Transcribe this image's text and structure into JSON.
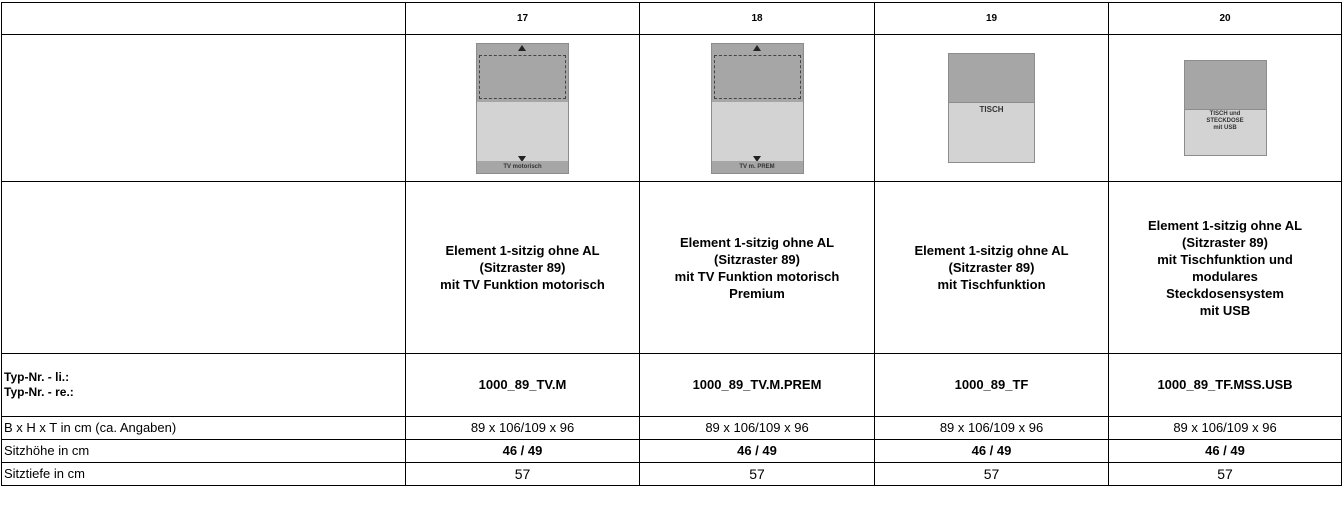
{
  "columns": [
    {
      "number": "17",
      "diagram_label": "TV motorisch",
      "description": [
        "Element 1-sitzig ohne AL",
        "(Sitzraster 89)",
        "mit TV Funktion motorisch"
      ],
      "typ_nr": "1000_89_TV.M",
      "dimensions": "89 x 106/109 x 96",
      "sitzhoehe": "46 / 49",
      "sitztiefe": "57"
    },
    {
      "number": "18",
      "diagram_label": "TV m. PREM",
      "description": [
        "Element 1-sitzig ohne AL",
        "(Sitzraster 89)",
        "mit TV Funktion motorisch",
        "Premium"
      ],
      "typ_nr": "1000_89_TV.M.PREM",
      "dimensions": "89 x 106/109 x 96",
      "sitzhoehe": "46 / 49",
      "sitztiefe": "57"
    },
    {
      "number": "19",
      "diagram_label": "TISCH",
      "description": [
        "Element 1-sitzig ohne AL",
        "(Sitzraster 89)",
        "mit Tischfunktion"
      ],
      "typ_nr": "1000_89_TF",
      "dimensions": "89 x 106/109 x 96",
      "sitzhoehe": "46 / 49",
      "sitztiefe": "57"
    },
    {
      "number": "20",
      "diagram_label": [
        "TISCH und",
        "STECKDOSE",
        "mit USB"
      ],
      "description": [
        "Element 1-sitzig ohne AL",
        "(Sitzraster 89)",
        "mit Tischfunktion und",
        "modulares",
        "Steckdosensystem",
        "mit USB"
      ],
      "typ_nr": "1000_89_TF.MSS.USB",
      "dimensions": "89 x 106/109 x 96",
      "sitzhoehe": "46 / 49",
      "sitztiefe": "57"
    }
  ],
  "row_labels": {
    "typ_li": "Typ-Nr. - li.:",
    "typ_re": "Typ-Nr. - re.:",
    "dimensions": "B x H x T in cm (ca. Angaben)",
    "sitzhoehe": "Sitzhöhe in cm",
    "sitztiefe": "Sitztiefe in cm"
  },
  "colors": {
    "diagram_dark": "#a6a6a6",
    "diagram_light": "#d3d3d3",
    "border": "#000000"
  }
}
